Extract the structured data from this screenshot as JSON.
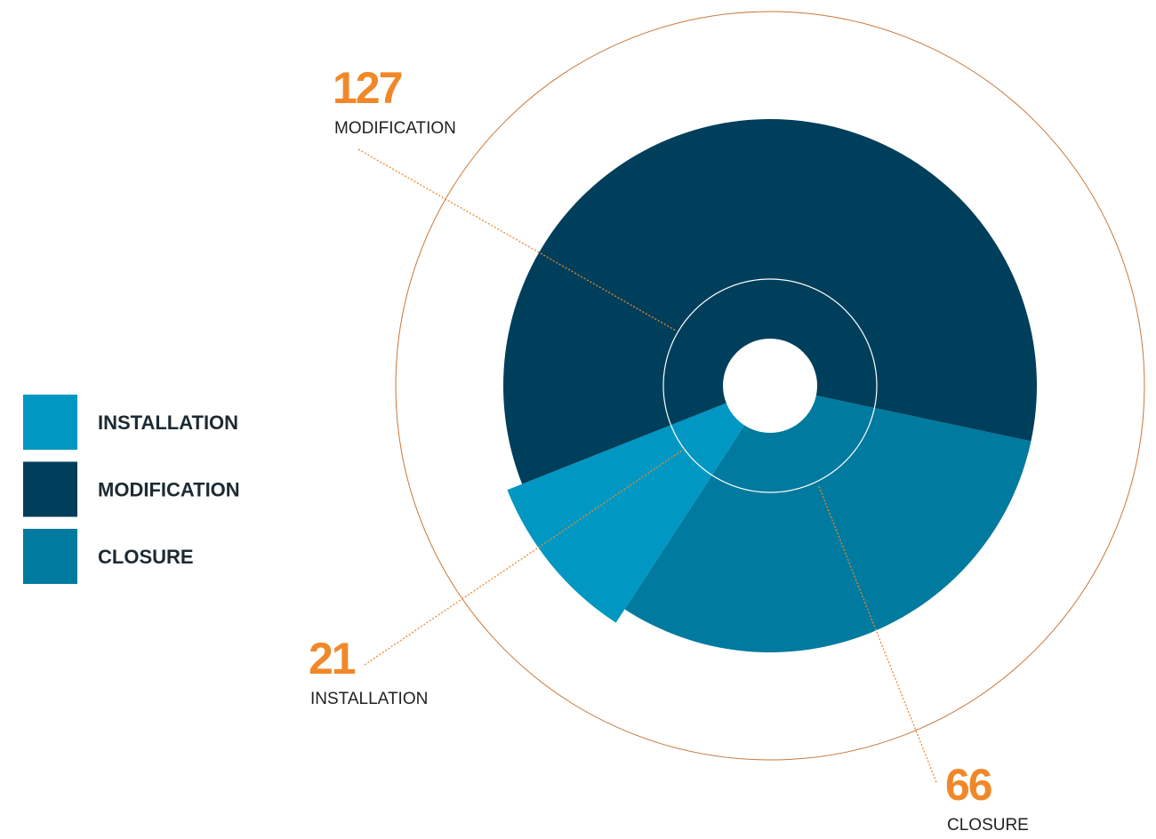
{
  "chart_data": {
    "type": "pie",
    "categories": [
      "INSTALLATION",
      "MODIFICATION",
      "CLOSURE"
    ],
    "values": [
      21,
      127,
      66
    ],
    "colors": [
      "#0098c2",
      "#003f5b",
      "#007a9e"
    ],
    "legend": "left"
  }
}
